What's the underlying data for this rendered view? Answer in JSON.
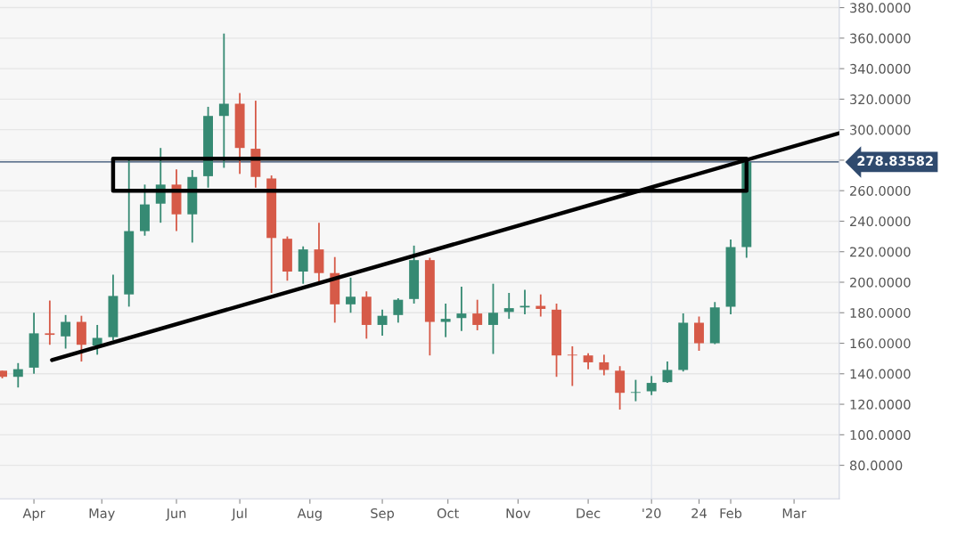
{
  "chart_data": {
    "type": "candlestick",
    "x": [
      "2019-03-18",
      "2019-03-25",
      "2019-04-01",
      "2019-04-08",
      "2019-04-15",
      "2019-04-22",
      "2019-04-29",
      "2019-05-06",
      "2019-05-13",
      "2019-05-20",
      "2019-05-27",
      "2019-06-03",
      "2019-06-10",
      "2019-06-17",
      "2019-06-24",
      "2019-07-01",
      "2019-07-08",
      "2019-07-15",
      "2019-07-22",
      "2019-07-29",
      "2019-08-05",
      "2019-08-12",
      "2019-08-19",
      "2019-08-26",
      "2019-09-02",
      "2019-09-09",
      "2019-09-16",
      "2019-09-23",
      "2019-09-30",
      "2019-10-07",
      "2019-10-14",
      "2019-10-21",
      "2019-10-28",
      "2019-11-04",
      "2019-11-11",
      "2019-11-18",
      "2019-11-25",
      "2019-12-02",
      "2019-12-09",
      "2019-12-16",
      "2019-12-23",
      "2019-12-30",
      "2020-01-06",
      "2020-01-13",
      "2020-01-20",
      "2020-01-27",
      "2020-02-03",
      "2020-02-10"
    ],
    "ohlc": [
      [
        142,
        142,
        137,
        138
      ],
      [
        138,
        147,
        131,
        143
      ],
      [
        144,
        180,
        140,
        166.5
      ],
      [
        166.5,
        188,
        159,
        165.5
      ],
      [
        164.5,
        178.5,
        156.5,
        174
      ],
      [
        174,
        178,
        148,
        159
      ],
      [
        158.5,
        172,
        152.5,
        163.5
      ],
      [
        164,
        205,
        162,
        191
      ],
      [
        192,
        280,
        184,
        233.5
      ],
      [
        233.5,
        264,
        230.5,
        251
      ],
      [
        251.5,
        288,
        239,
        264
      ],
      [
        264,
        274,
        233.5,
        244.5
      ],
      [
        244.5,
        273.5,
        226,
        269
      ],
      [
        269.5,
        315,
        262,
        309
      ],
      [
        309,
        363,
        275,
        317
      ],
      [
        317,
        324,
        271,
        288
      ],
      [
        287.5,
        319,
        262,
        269
      ],
      [
        268,
        270,
        193,
        229
      ],
      [
        228.5,
        230,
        201,
        207
      ],
      [
        207,
        223.5,
        199,
        221.5
      ],
      [
        221.5,
        239,
        200.5,
        206
      ],
      [
        206,
        216.5,
        173.5,
        185.5
      ],
      [
        185.5,
        203,
        180,
        190.5
      ],
      [
        190.5,
        194,
        163,
        172
      ],
      [
        172,
        182,
        165,
        178
      ],
      [
        178.5,
        189.5,
        173.5,
        188.5
      ],
      [
        189,
        224,
        186,
        214.5
      ],
      [
        214.5,
        216,
        152,
        174
      ],
      [
        174,
        186,
        164,
        176
      ],
      [
        176.5,
        197,
        168,
        179.5
      ],
      [
        179.5,
        188.5,
        168.5,
        172
      ],
      [
        172,
        199,
        153,
        180
      ],
      [
        180.5,
        193,
        176,
        183
      ],
      [
        183.5,
        195,
        179,
        184.5
      ],
      [
        184.5,
        192,
        177.5,
        182.5
      ],
      [
        182,
        186,
        138,
        152
      ],
      [
        152.5,
        158,
        132,
        152
      ],
      [
        152,
        153.5,
        143,
        147.5
      ],
      [
        147.5,
        152.5,
        139,
        142.5
      ],
      [
        142,
        145,
        116.5,
        127.5
      ],
      [
        127.5,
        136,
        122,
        128
      ],
      [
        128.5,
        138.5,
        126,
        134
      ],
      [
        134.5,
        148,
        134,
        142.5
      ],
      [
        142.5,
        179.5,
        141.5,
        173.5
      ],
      [
        173.5,
        177.5,
        155,
        160
      ],
      [
        160,
        187,
        159.5,
        183.5
      ],
      [
        184,
        228,
        179,
        223
      ],
      [
        223,
        280,
        216,
        278.8
      ]
    ],
    "colors": [
      "#d65a48",
      "#368a73",
      "#368a73",
      "#d65a48",
      "#368a73",
      "#d65a48",
      "#368a73",
      "#368a73",
      "#368a73",
      "#368a73",
      "#368a73",
      "#d65a48",
      "#368a73",
      "#368a73",
      "#368a73",
      "#d65a48",
      "#d65a48",
      "#d65a48",
      "#d65a48",
      "#368a73",
      "#d65a48",
      "#d65a48",
      "#368a73",
      "#d65a48",
      "#368a73",
      "#368a73",
      "#368a73",
      "#d65a48",
      "#368a73",
      "#368a73",
      "#d65a48",
      "#368a73",
      "#368a73",
      "#368a73",
      "#d65a48",
      "#d65a48",
      "#d65a48",
      "#d65a48",
      "#d65a48",
      "#d65a48",
      "#368a73",
      "#368a73",
      "#368a73",
      "#368a73",
      "#d65a48",
      "#368a73",
      "#368a73",
      "#368a73"
    ],
    "series": [
      {
        "type": "line",
        "color": "#000000",
        "x": [
          "2019-04-09",
          "2020-03-22"
        ],
        "values": [
          149,
          297.7
        ]
      },
      {
        "type": "line",
        "color": "#000000",
        "x": [
          "2019-09-02",
          "2019-05-06",
          "2019-05-06",
          "2020-02-10",
          "2020-02-10",
          "2019-09-01"
        ],
        "values": [
          260,
          260,
          281,
          281,
          260,
          260
        ]
      }
    ],
    "ref_lines": [
      {
        "axis": "y",
        "value": 278.83582,
        "label": "278.83582",
        "color": "#2f4a6e"
      },
      {
        "axis": "x",
        "value": "2019-12-30",
        "color": "#e3e6ee"
      }
    ],
    "xlim": [
      "2019-03-17",
      "2020-03-22"
    ],
    "xticks": [
      {
        "value": "2019-04-01",
        "label": "Apr"
      },
      {
        "value": "2019-05-01",
        "label": "May"
      },
      {
        "value": "2019-06-03",
        "label": "Jun"
      },
      {
        "value": "2019-07-01",
        "label": "Jul"
      },
      {
        "value": "2019-08-01",
        "label": "Aug"
      },
      {
        "value": "2019-09-02",
        "label": "Sep"
      },
      {
        "value": "2019-10-01",
        "label": "Oct"
      },
      {
        "value": "2019-11-01",
        "label": "Nov"
      },
      {
        "value": "2019-12-02",
        "label": "Dec"
      },
      {
        "value": "2019-12-30",
        "label": "'20"
      },
      {
        "value": "2020-01-20",
        "label": "24"
      },
      {
        "value": "2020-02-03",
        "label": "Feb"
      },
      {
        "value": "2020-03-02",
        "label": "Mar"
      }
    ],
    "ylim": [
      58,
      385
    ],
    "yticks": [
      {
        "value": 80,
        "label": "80.0000"
      },
      {
        "value": 100,
        "label": "100.0000"
      },
      {
        "value": 120,
        "label": "120.0000"
      },
      {
        "value": 140,
        "label": "140.0000"
      },
      {
        "value": 160,
        "label": "160.0000"
      },
      {
        "value": 180,
        "label": "180.0000"
      },
      {
        "value": 200,
        "label": "200.0000"
      },
      {
        "value": 220,
        "label": "220.0000"
      },
      {
        "value": 240,
        "label": "240.0000"
      },
      {
        "value": 260,
        "label": "260.0000"
      },
      {
        "value": 280,
        "label": null
      },
      {
        "value": 300,
        "label": "300.0000"
      },
      {
        "value": 320,
        "label": "320.0000"
      },
      {
        "value": 340,
        "label": "340.0000"
      },
      {
        "value": 360,
        "label": "360.0000"
      },
      {
        "value": 380,
        "label": "380.0000"
      }
    ],
    "grid": "y"
  }
}
